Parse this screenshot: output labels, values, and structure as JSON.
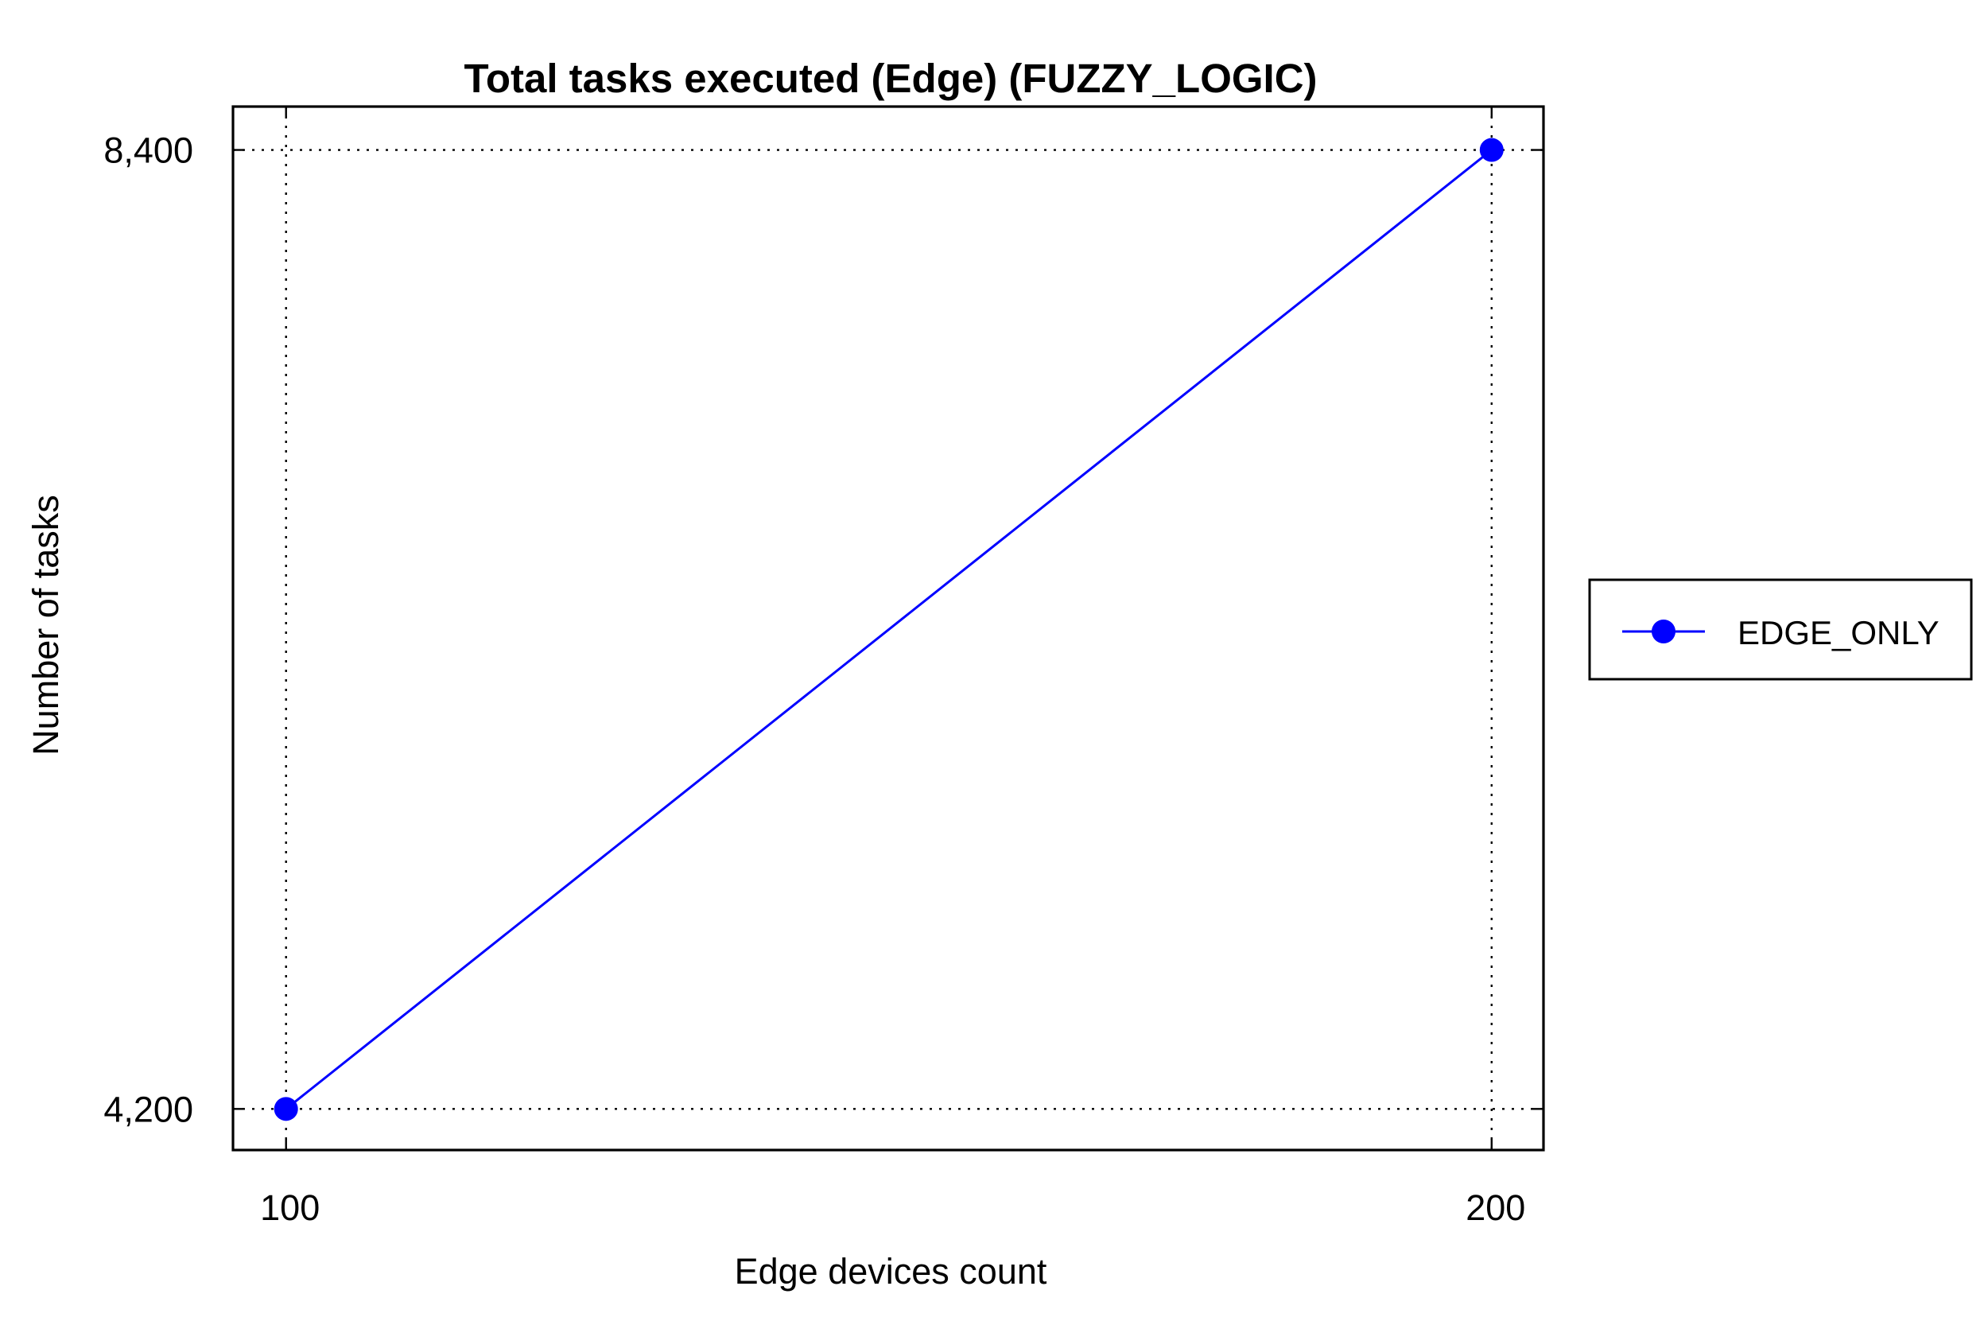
{
  "chart_data": {
    "type": "line",
    "title": "Total tasks executed (Edge) (FUZZY_LOGIC)",
    "xlabel": "Edge devices count",
    "ylabel": "Number of tasks",
    "x": [
      100,
      200
    ],
    "x_tick_labels": [
      "100",
      "200"
    ],
    "y_tick_values": [
      4200,
      8400
    ],
    "y_tick_labels": [
      "4,200",
      "8,400"
    ],
    "xlim": [
      95.6,
      204.3
    ],
    "ylim": [
      4020,
      8590
    ],
    "grid": true,
    "legend_position": "right",
    "series": [
      {
        "name": "EDGE_ONLY",
        "values": [
          4200,
          8400
        ],
        "color": "#0000ff",
        "marker": "circle"
      }
    ]
  }
}
